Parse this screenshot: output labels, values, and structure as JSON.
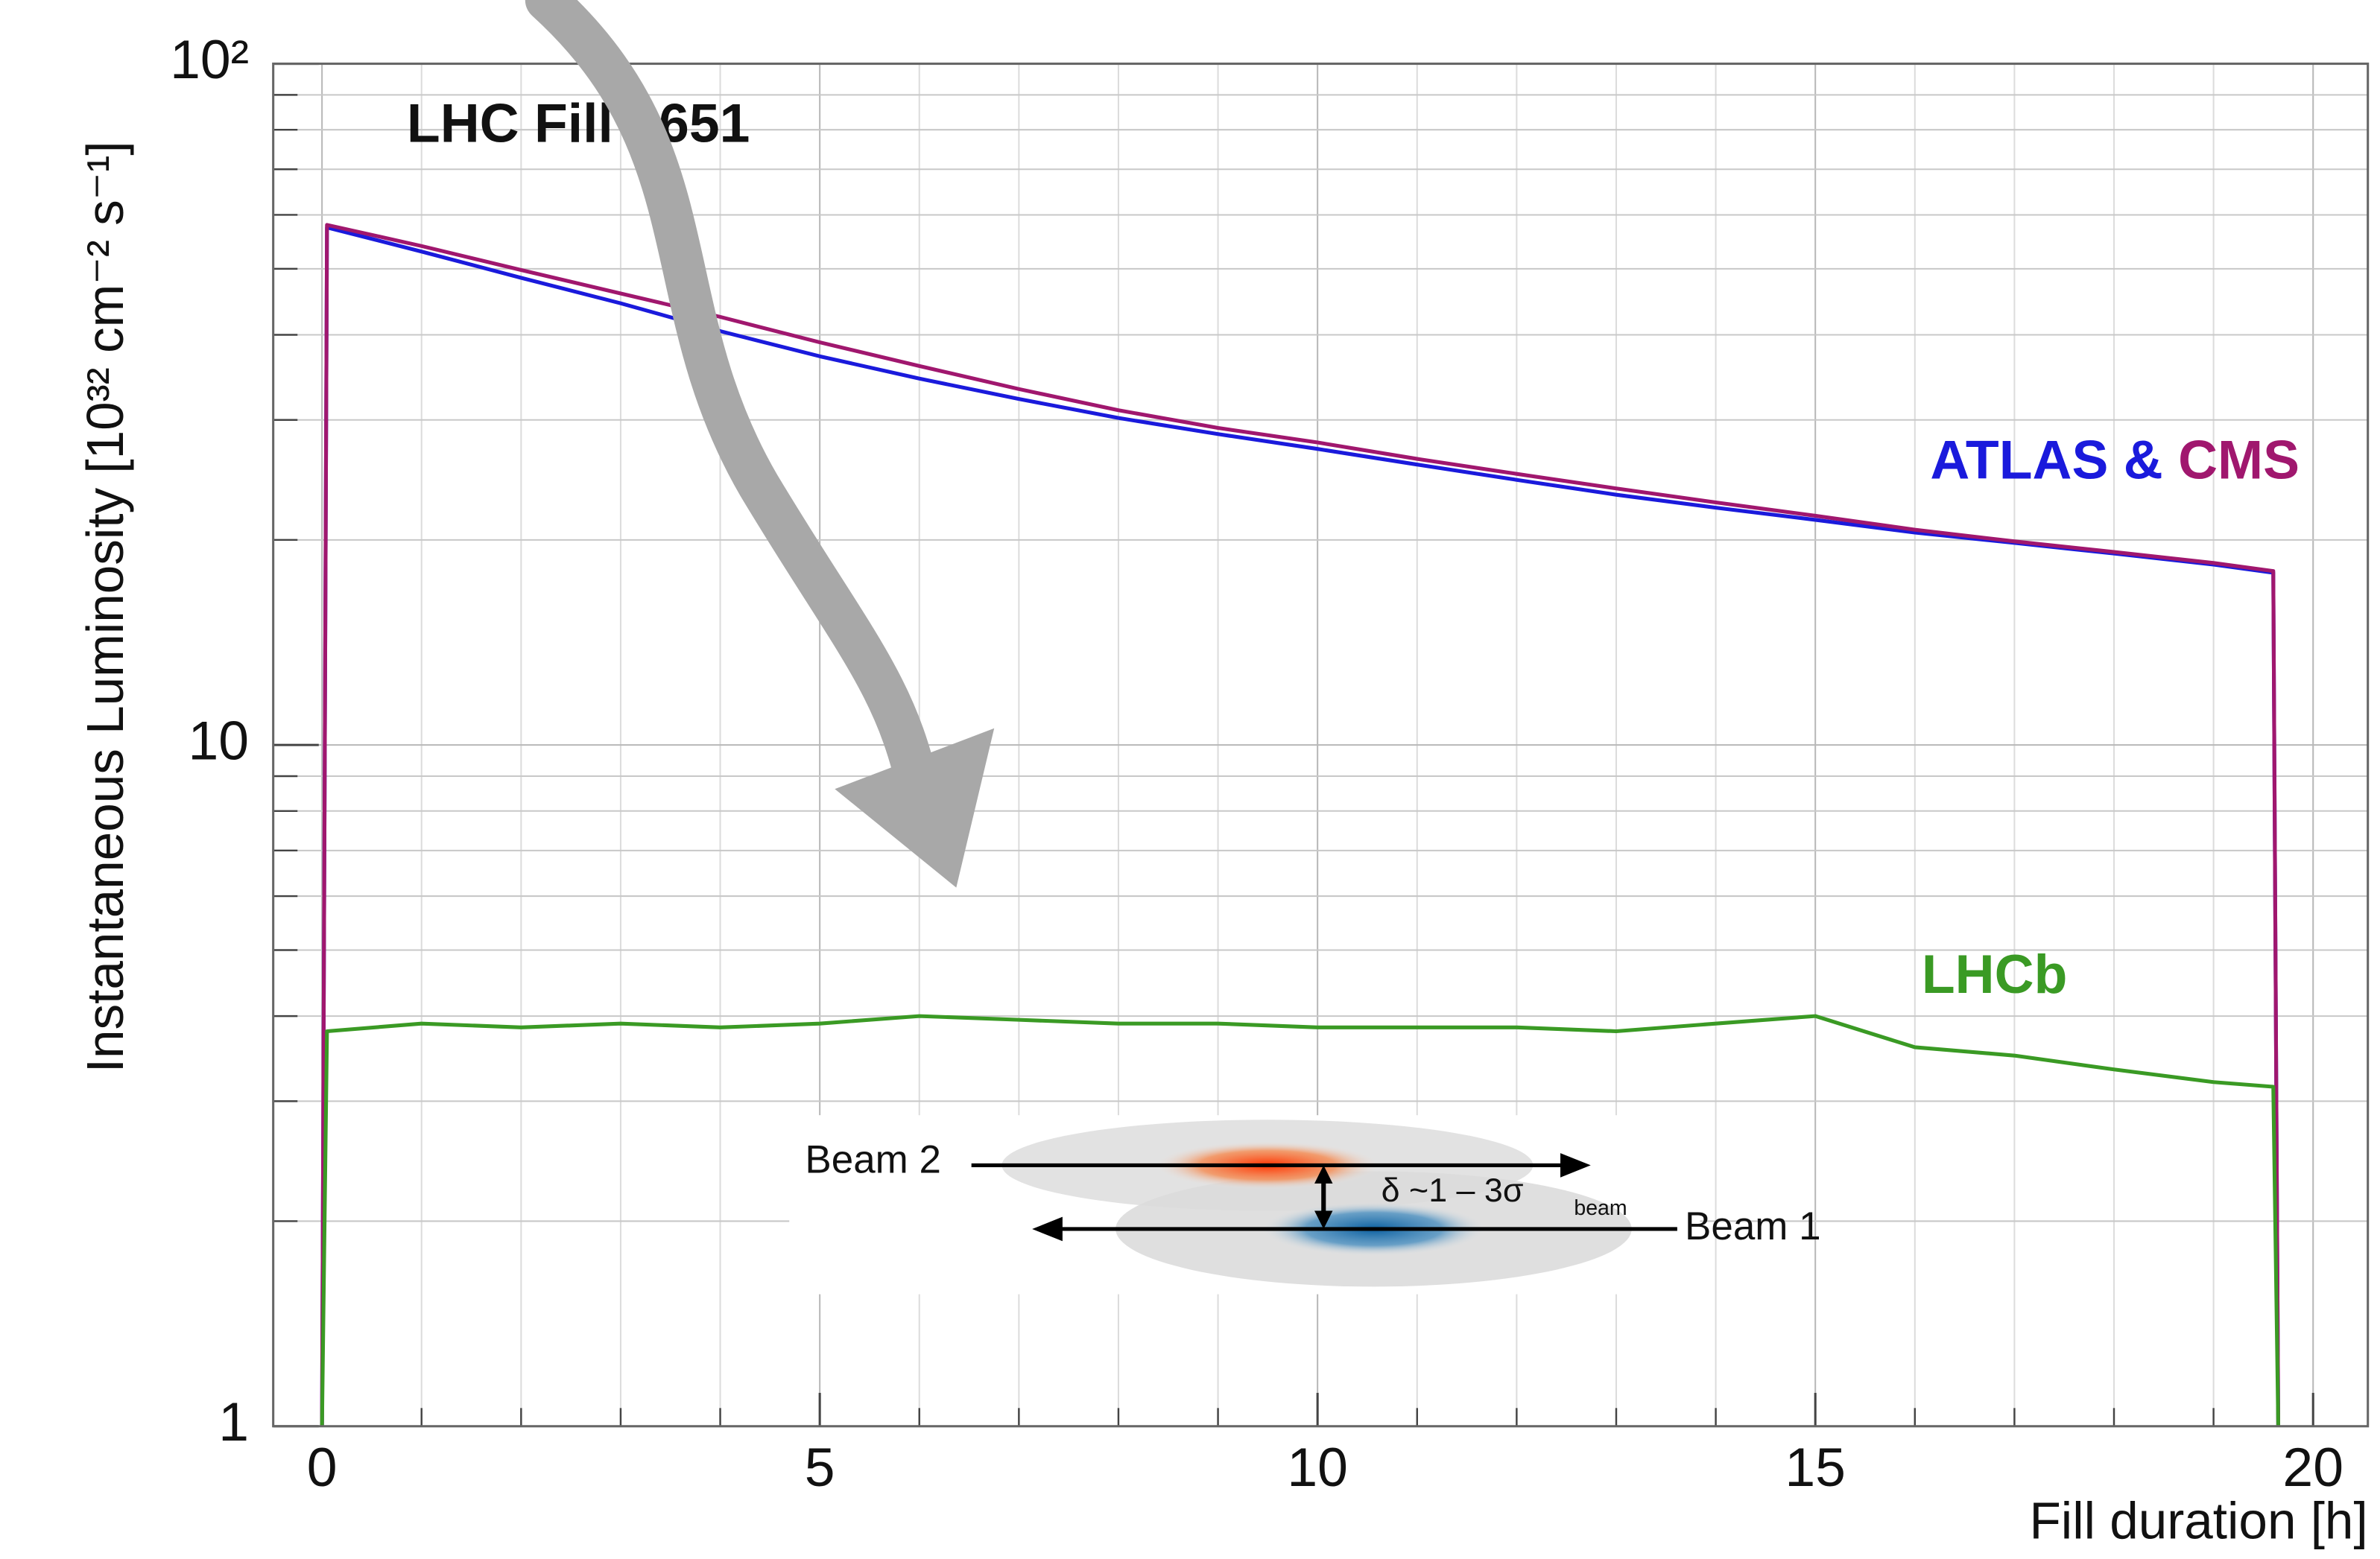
{
  "chart_data": {
    "type": "line",
    "title": "LHC Fill 2651",
    "x_label": "Fill duration [h]",
    "y_label": "Instantaneous Luminosity [10³² cm⁻² s⁻¹]",
    "log_y": true,
    "grid": true,
    "xlim": [
      -0.49,
      20.55
    ],
    "ylim": [
      1,
      100
    ],
    "xticks": [
      0,
      5,
      10,
      15,
      20
    ],
    "xminor": [
      1,
      2,
      3,
      4,
      6,
      7,
      8,
      9,
      11,
      12,
      13,
      14,
      16,
      17,
      18,
      19
    ],
    "yticks": [
      1,
      10,
      {
        "value": 100,
        "label": "10²"
      }
    ],
    "yminor": [
      2,
      3,
      4,
      5,
      6,
      7,
      8,
      9,
      20,
      30,
      40,
      50,
      60,
      70,
      80,
      90
    ],
    "x": [
      0,
      0.05,
      1,
      2,
      3,
      4,
      5,
      6,
      7,
      8,
      9,
      10,
      11,
      12,
      13,
      14,
      15,
      16,
      17,
      18,
      19,
      19.6,
      19.65
    ],
    "series": [
      {
        "name": "ATLAS",
        "color": "#1a1adc",
        "values": [
          1,
          57.5,
          53,
          48.5,
          44.5,
          40.5,
          37.2,
          34.5,
          32.2,
          30.2,
          28.6,
          27.2,
          25.8,
          24.5,
          23.3,
          22.3,
          21.4,
          20.5,
          19.8,
          19.1,
          18.4,
          17.9,
          1
        ]
      },
      {
        "name": "CMS",
        "color": "#a0176e",
        "values": [
          1,
          58,
          54,
          49.8,
          46,
          42.5,
          39,
          36,
          33.3,
          31,
          29.2,
          27.8,
          26.3,
          25,
          23.8,
          22.7,
          21.7,
          20.7,
          19.9,
          19.2,
          18.5,
          18,
          1
        ]
      },
      {
        "name": "LHCb",
        "color": "#3a9a24",
        "values": [
          1,
          3.8,
          3.9,
          3.85,
          3.9,
          3.85,
          3.9,
          4.0,
          3.95,
          3.9,
          3.9,
          3.85,
          3.85,
          3.85,
          3.8,
          3.9,
          4.0,
          3.6,
          3.5,
          3.34,
          3.2,
          3.15,
          1
        ]
      }
    ],
    "legend_joiner": "&",
    "annotations": {
      "beam2": "Beam 2",
      "beam1": "Beam 1",
      "separation": "δ ~1 – 3σ",
      "separation_sub": "beam"
    }
  }
}
